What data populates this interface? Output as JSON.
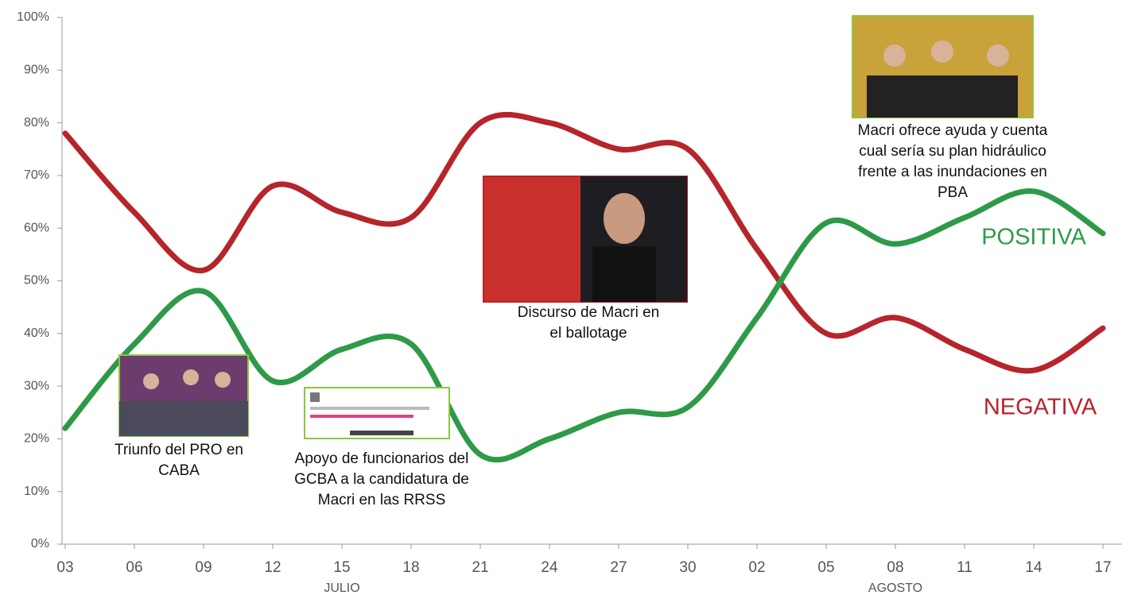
{
  "chart_data": {
    "type": "line",
    "categories": [
      "03",
      "06",
      "09",
      "12",
      "15",
      "18",
      "21",
      "24",
      "27",
      "30",
      "02",
      "05",
      "08",
      "11",
      "14",
      "17"
    ],
    "months": [
      {
        "label": "JULIO",
        "category": 4
      },
      {
        "label": "AGOSTO",
        "category": 12
      }
    ],
    "series": [
      {
        "name": "POSITIVA",
        "color": "#2e9a48",
        "values": [
          22,
          38,
          48,
          31,
          37,
          38,
          17,
          20,
          25,
          26,
          43,
          61,
          57,
          62,
          67,
          59
        ]
      },
      {
        "name": "NEGATIVA",
        "color": "#b5252a",
        "values": [
          78,
          63,
          52,
          68,
          63,
          62,
          80,
          80,
          75,
          75,
          56,
          40,
          43,
          37,
          33,
          41
        ]
      }
    ],
    "ylim": [
      0,
      100
    ],
    "yticks": [
      {
        "value": 0,
        "label": "0%"
      },
      {
        "value": 10,
        "label": "10%"
      },
      {
        "value": 20,
        "label": "20%"
      },
      {
        "value": 30,
        "label": "30%"
      },
      {
        "value": 40,
        "label": "40%"
      },
      {
        "value": 50,
        "label": "50%"
      },
      {
        "value": 60,
        "label": "60%"
      },
      {
        "value": 70,
        "label": "70%"
      },
      {
        "value": 80,
        "label": "80%"
      },
      {
        "value": 90,
        "label": "90%"
      },
      {
        "value": 100,
        "label": "100%"
      }
    ],
    "annotations": [
      {
        "lines": [
          "Triunfo del PRO en",
          "CABA"
        ]
      },
      {
        "lines": [
          "Apoyo de funcionarios del",
          "GCBA a la candidatura de",
          "Macri en las RRSS"
        ]
      },
      {
        "lines": [
          "Discurso de Macri en",
          "el ballotage"
        ]
      },
      {
        "lines": [
          "Macri ofrece ayuda y cuenta",
          "cual sería su plan hidráulico",
          "frente a las inundaciones en",
          "PBA"
        ]
      }
    ]
  }
}
